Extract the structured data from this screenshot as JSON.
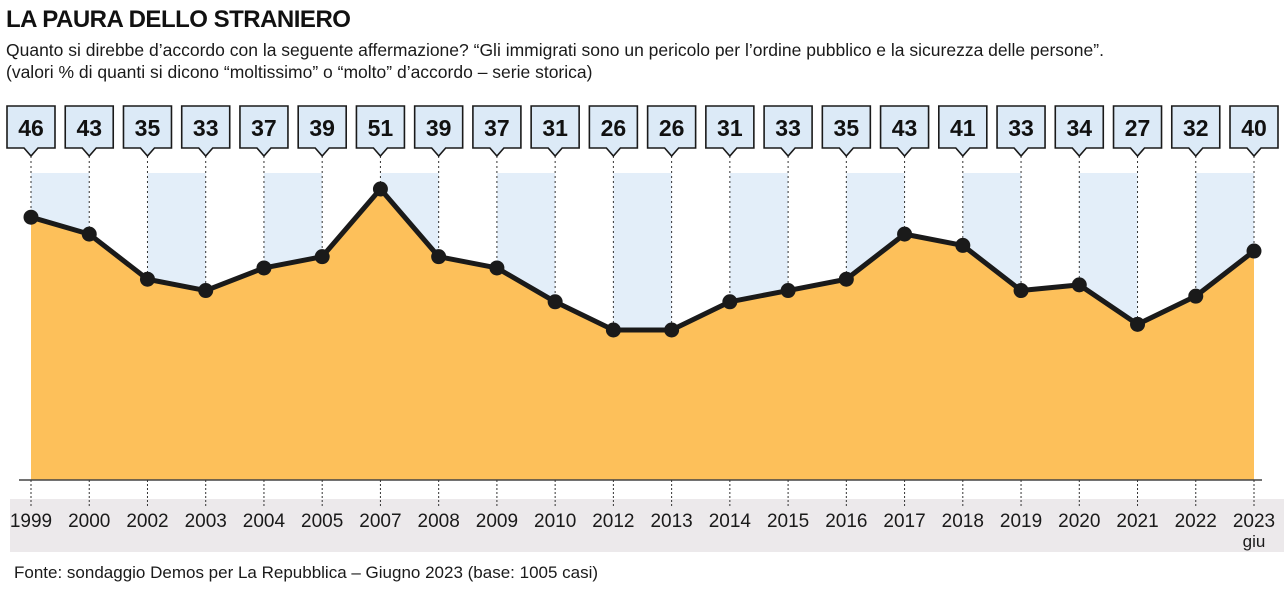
{
  "title": "LA PAURA DELLO STRANIERO",
  "subtitle": "Quanto si direbbe d’accordo con la seguente affermazione? “Gli immigrati sono un pericolo per l’ordine pubblico e la sicurezza delle persone”. (valori % di quanti si dicono “moltissimo” o “molto” d’accordo – serie storica)",
  "source": "Fonte: sondaggio Demos per La Repubblica – Giugno 2023 (base: 1005 casi)",
  "colors": {
    "area_fill": "#FDC05A",
    "band_fill": "#E3EEF9",
    "line": "#1a1a1a",
    "callout_fill": "#DCEAF7",
    "axis_band": "#ECE9EB"
  },
  "chart_data": {
    "type": "area",
    "categories": [
      "1999",
      "2000",
      "2002",
      "2003",
      "2004",
      "2005",
      "2007",
      "2008",
      "2009",
      "2010",
      "2012",
      "2013",
      "2014",
      "2015",
      "2016",
      "2017",
      "2018",
      "2019",
      "2020",
      "2021",
      "2022",
      "2023"
    ],
    "category_sublabels": [
      "",
      "",
      "",
      "",
      "",
      "",
      "",
      "",
      "",
      "",
      "",
      "",
      "",
      "",
      "",
      "",
      "",
      "",
      "",
      "",
      "",
      "giu"
    ],
    "values": [
      46,
      43,
      35,
      33,
      37,
      39,
      51,
      39,
      37,
      31,
      26,
      26,
      31,
      33,
      35,
      43,
      41,
      33,
      34,
      27,
      32,
      40
    ],
    "data_labels": [
      "46",
      "43",
      "35",
      "33",
      "37",
      "39",
      "51",
      "39",
      "37",
      "31",
      "26",
      "26",
      "31",
      "33",
      "35",
      "43",
      "41",
      "33",
      "34",
      "27",
      "32",
      "40"
    ],
    "ylim": [
      0,
      55
    ],
    "xlabel": "",
    "ylabel": ""
  }
}
